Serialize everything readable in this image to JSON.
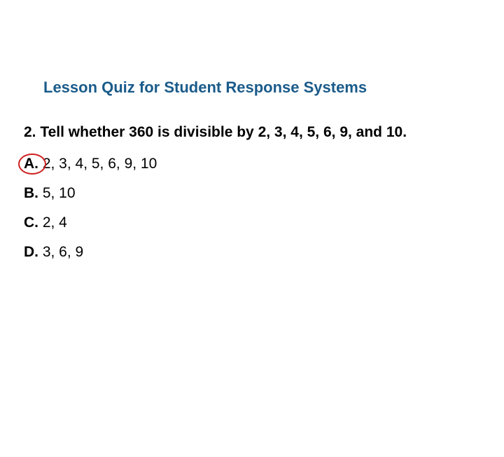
{
  "title_color": "#1a5b8a",
  "text_color": "#000000",
  "circle_color": "#d02020",
  "background_color": "#ffffff",
  "title": "Lesson Quiz for Student Response Systems",
  "question": "2. Tell whether 360 is divisible by 2, 3, 4, 5, 6, 9, and 10.",
  "options": [
    {
      "letter": "A.",
      "text": " 2, 3, 4, 5, 6, 9, 10",
      "correct": true
    },
    {
      "letter": "B.",
      "text": " 5, 10",
      "correct": false
    },
    {
      "letter": "C.",
      "text": " 2, 4",
      "correct": false
    },
    {
      "letter": "D.",
      "text": " 3, 6, 9",
      "correct": false
    }
  ]
}
